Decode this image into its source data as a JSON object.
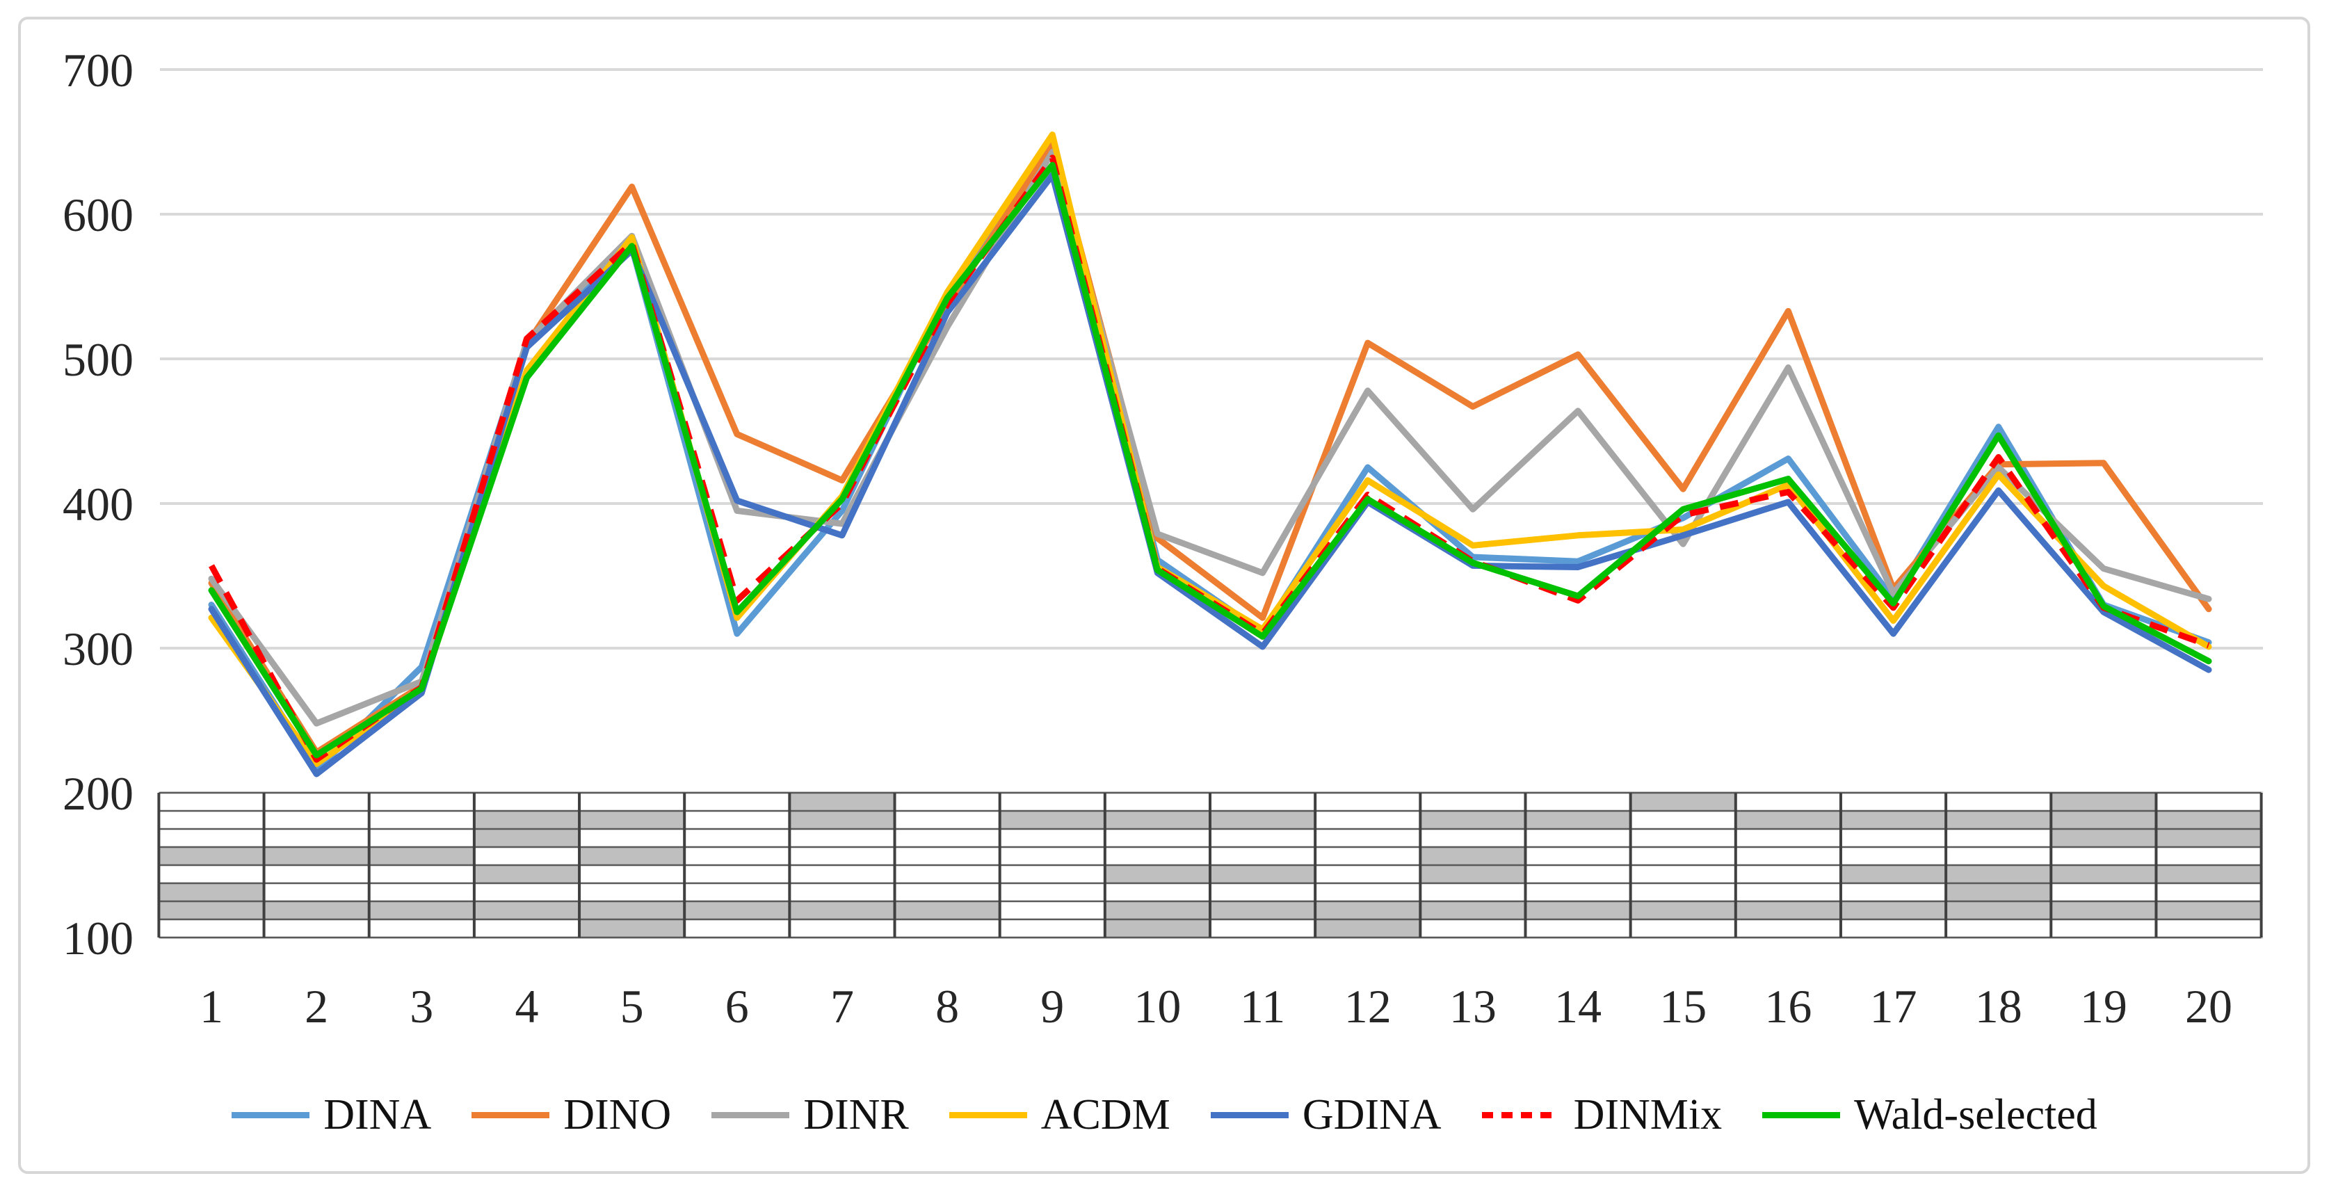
{
  "figure": {
    "background": "#FFFFFF",
    "frame_border_color": "#D6D6D6"
  },
  "chart_data": {
    "type": "line",
    "title": "",
    "xlabel": "",
    "ylabel": "",
    "ylim": [
      100,
      700
    ],
    "grid": "horizontal",
    "gridline_color": "#D9D9D9",
    "axis_label_color": "#262626",
    "y_ticks": [
      "700",
      "600",
      "500",
      "400",
      "300",
      "200",
      "100"
    ],
    "y_tick_values": [
      700,
      600,
      500,
      400,
      300,
      200,
      100
    ],
    "categories": [
      "1",
      "2",
      "3",
      "4",
      "5",
      "6",
      "7",
      "8",
      "9",
      "10",
      "11",
      "12",
      "13",
      "14",
      "15",
      "16",
      "17",
      "18",
      "19",
      "20"
    ],
    "legend_position": "bottom",
    "series": [
      {
        "name": "DINA",
        "color": "#5B9BD5",
        "style": "solid",
        "values": [
          330,
          216,
          287,
          511,
          577,
          310,
          395,
          545,
          646,
          361,
          311,
          425,
          363,
          360,
          390,
          431,
          334,
          453,
          330,
          304
        ]
      },
      {
        "name": "DINO",
        "color": "#ED7D31",
        "style": "solid",
        "values": [
          345,
          228,
          274,
          510,
          619,
          448,
          416,
          536,
          649,
          376,
          321,
          511,
          467,
          503,
          410,
          533,
          341,
          427,
          428,
          327
        ]
      },
      {
        "name": "DINR",
        "color": "#A6A6A6",
        "style": "solid",
        "values": [
          348,
          248,
          277,
          512,
          585,
          395,
          386,
          522,
          643,
          379,
          352,
          478,
          396,
          464,
          372,
          494,
          338,
          425,
          355,
          334
        ]
      },
      {
        "name": "ACDM",
        "color": "#FFC000",
        "style": "solid",
        "values": [
          321,
          220,
          271,
          492,
          584,
          321,
          405,
          546,
          655,
          356,
          313,
          416,
          371,
          378,
          382,
          413,
          319,
          420,
          343,
          301
        ]
      },
      {
        "name": "GDINA",
        "color": "#4472C4",
        "style": "solid",
        "values": [
          327,
          213,
          269,
          508,
          575,
          402,
          378,
          532,
          627,
          352,
          301,
          401,
          357,
          356,
          378,
          401,
          310,
          409,
          325,
          285
        ]
      },
      {
        "name": "DINMix",
        "color": "#FF0000",
        "style": "dashed",
        "values": [
          357,
          223,
          273,
          514,
          580,
          333,
          400,
          538,
          639,
          355,
          310,
          406,
          360,
          333,
          392,
          408,
          328,
          432,
          328,
          302
        ]
      },
      {
        "name": "Wald-selected",
        "color": "#00C000",
        "style": "solid",
        "values": [
          340,
          226,
          272,
          487,
          578,
          325,
          403,
          542,
          634,
          354,
          308,
          403,
          359,
          336,
          396,
          417,
          331,
          447,
          329,
          291
        ]
      }
    ],
    "item_attribute_grid": {
      "description": "shaded cell grid drawn between y=200 and y=100, one column per item, 8 rows",
      "rows": 8,
      "shaded_color": "#BFBFBF",
      "cell_border_color": "#595959",
      "column_border_color": "#404040",
      "columns": [
        "00010110",
        "00010010",
        "00010010",
        "01101010",
        "01010011",
        "00000010",
        "11000010",
        "00000010",
        "01000000",
        "01001011",
        "01001010",
        "00000011",
        "01011010",
        "01000010",
        "10000010",
        "01000010",
        "01001010",
        "01001110",
        "11101010",
        "01101010"
      ]
    }
  }
}
